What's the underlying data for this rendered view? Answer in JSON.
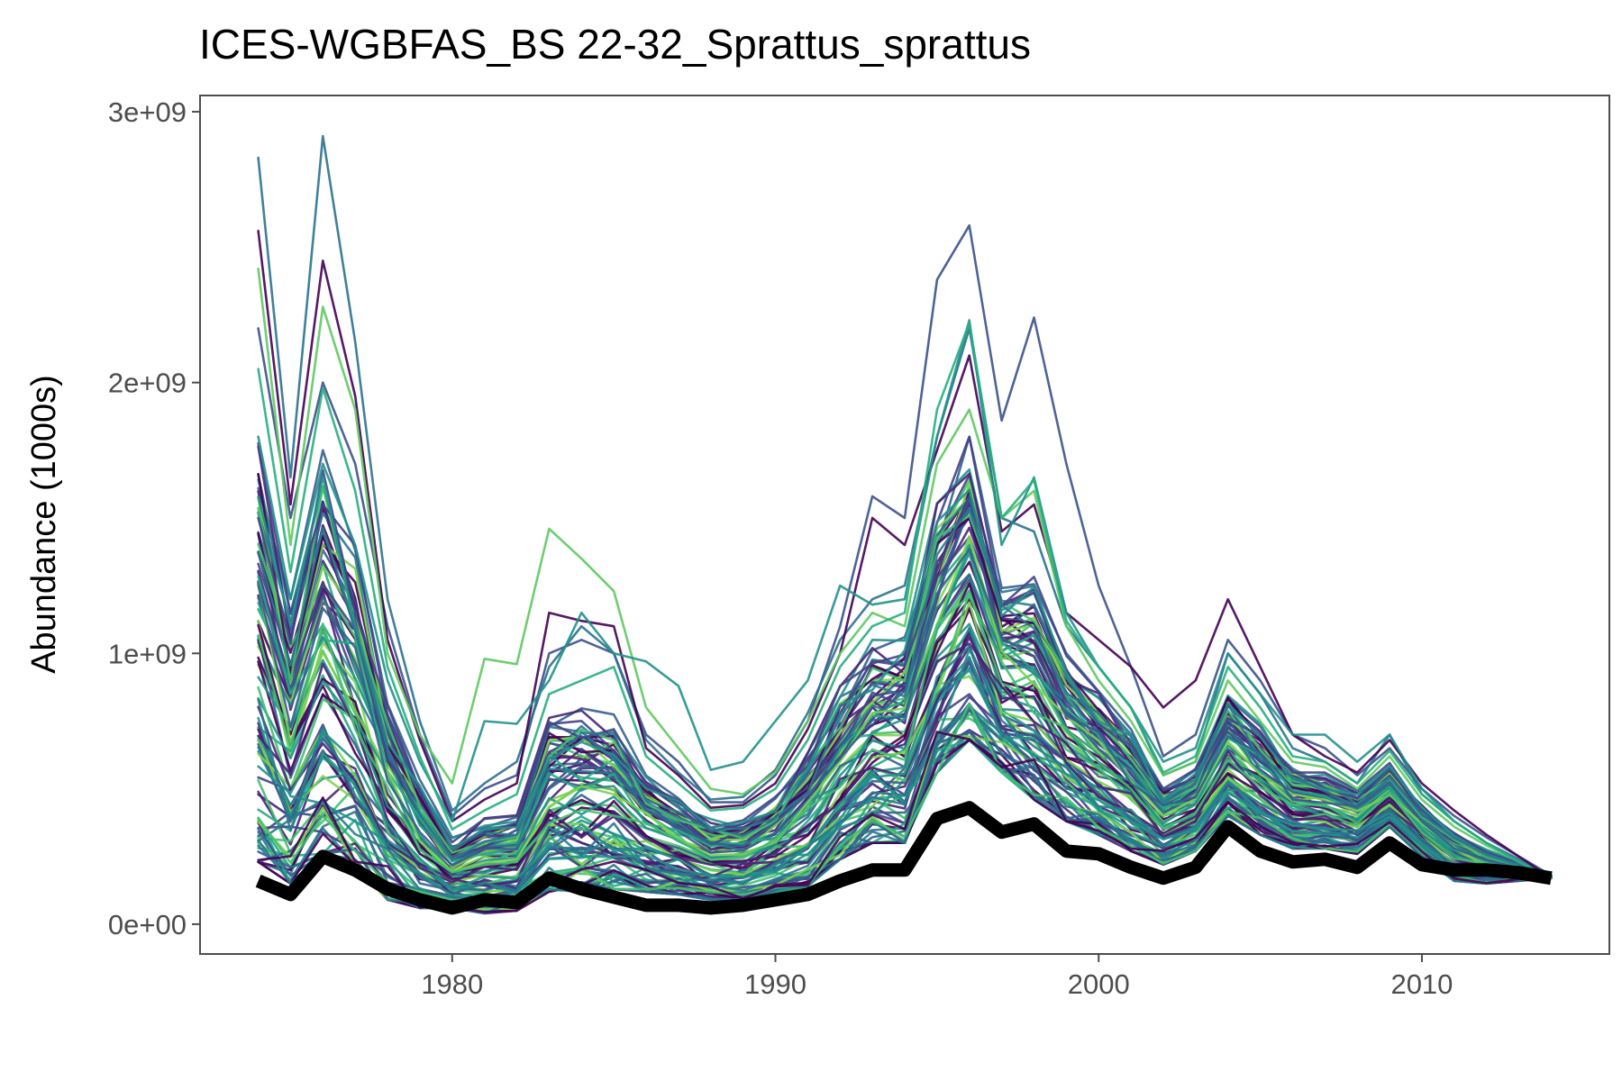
{
  "chart_data": {
    "type": "line",
    "title": "ICES-WGBFAS_BS 22-32_Sprattus_sprattus",
    "xlabel": "",
    "ylabel": "Abundance (1000s)",
    "xlim": [
      1972.2,
      2015.8
    ],
    "ylim": [
      -110000000,
      3060000000
    ],
    "x_ticks": [
      1980,
      1990,
      2000,
      2010
    ],
    "x_tick_labels": [
      "1980",
      "1990",
      "2000",
      "2010"
    ],
    "y_ticks": [
      0,
      1000000000,
      2000000000,
      3000000000
    ],
    "y_tick_labels": [
      "0e+00",
      "1e+09",
      "2e+09",
      "3e+09"
    ],
    "grid": false,
    "legend": "none",
    "x": [
      1974,
      1975,
      1976,
      1977,
      1978,
      1979,
      1980,
      1981,
      1982,
      1983,
      1984,
      1985,
      1986,
      1987,
      1988,
      1989,
      1990,
      1991,
      1992,
      1993,
      1994,
      1995,
      1996,
      1997,
      1998,
      1999,
      2000,
      2001,
      2002,
      2003,
      2004,
      2005,
      2006,
      2007,
      2008,
      2009,
      2010,
      2011,
      2012,
      2013,
      2014
    ],
    "reference_series": {
      "color": "#000000",
      "values": [
        160000000,
        110000000,
        250000000,
        200000000,
        130000000,
        90000000,
        60000000,
        90000000,
        80000000,
        170000000,
        130000000,
        100000000,
        70000000,
        70000000,
        60000000,
        70000000,
        90000000,
        110000000,
        160000000,
        200000000,
        200000000,
        390000000,
        430000000,
        340000000,
        370000000,
        270000000,
        260000000,
        210000000,
        170000000,
        210000000,
        360000000,
        270000000,
        230000000,
        240000000,
        210000000,
        300000000,
        220000000,
        200000000,
        200000000,
        190000000,
        170000000
      ]
    },
    "highlighted_series": [
      {
        "color": "#3b528b",
        "values": [
          2200000000,
          1500000000,
          2000000000,
          1700000000,
          1100000000,
          700000000,
          400000000,
          500000000,
          550000000,
          1000000000,
          1050000000,
          1000000000,
          700000000,
          600000000,
          450000000,
          450000000,
          550000000,
          750000000,
          1100000000,
          1580000000,
          1500000000,
          2380000000,
          2580000000,
          1860000000,
          2240000000,
          1700000000,
          1250000000,
          950000000,
          620000000,
          700000000,
          1050000000,
          900000000,
          700000000,
          650000000,
          550000000,
          650000000,
          500000000,
          400000000,
          320000000,
          250000000,
          180000000
        ]
      },
      {
        "color": "#2c728e",
        "values": [
          2830000000,
          1650000000,
          2910000000,
          2150000000,
          1200000000,
          750000000,
          420000000,
          520000000,
          600000000,
          950000000,
          1100000000,
          1000000000,
          680000000,
          560000000,
          460000000,
          470000000,
          570000000,
          780000000,
          1050000000,
          1200000000,
          1250000000,
          1800000000,
          2200000000,
          1500000000,
          1450000000,
          1100000000,
          950000000,
          800000000,
          550000000,
          600000000,
          1000000000,
          850000000,
          650000000,
          600000000,
          520000000,
          700000000,
          480000000,
          380000000,
          300000000,
          240000000,
          170000000
        ]
      },
      {
        "color": "#440154",
        "values": [
          2560000000,
          1550000000,
          2450000000,
          1950000000,
          1050000000,
          680000000,
          380000000,
          460000000,
          520000000,
          1150000000,
          1120000000,
          1100000000,
          650000000,
          550000000,
          430000000,
          440000000,
          520000000,
          720000000,
          1000000000,
          1500000000,
          1400000000,
          1750000000,
          2100000000,
          1450000000,
          1550000000,
          1150000000,
          1050000000,
          950000000,
          800000000,
          900000000,
          1200000000,
          950000000,
          700000000,
          620000000,
          560000000,
          680000000,
          520000000,
          420000000,
          330000000,
          250000000,
          170000000
        ]
      },
      {
        "color": "#5ec962",
        "values": [
          2420000000,
          1400000000,
          2280000000,
          1900000000,
          1000000000,
          700000000,
          520000000,
          980000000,
          960000000,
          1460000000,
          1350000000,
          1230000000,
          800000000,
          650000000,
          500000000,
          480000000,
          560000000,
          750000000,
          1000000000,
          1150000000,
          1100000000,
          1700000000,
          1900000000,
          1500000000,
          1600000000,
          1100000000,
          900000000,
          750000000,
          550000000,
          600000000,
          900000000,
          750000000,
          600000000,
          580000000,
          500000000,
          620000000,
          460000000,
          360000000,
          290000000,
          230000000,
          170000000
        ]
      },
      {
        "color": "#21918c",
        "values": [
          1800000000,
          1200000000,
          1700000000,
          1400000000,
          900000000,
          600000000,
          380000000,
          750000000,
          740000000,
          900000000,
          1150000000,
          1000000000,
          970000000,
          880000000,
          570000000,
          600000000,
          750000000,
          900000000,
          1250000000,
          1180000000,
          1200000000,
          1800000000,
          2230000000,
          1400000000,
          1650000000,
          1150000000,
          950000000,
          800000000,
          600000000,
          650000000,
          1000000000,
          850000000,
          700000000,
          700000000,
          600000000,
          700000000,
          500000000,
          380000000,
          300000000,
          230000000,
          170000000
        ]
      },
      {
        "color": "#28ae80",
        "values": [
          2050000000,
          1300000000,
          1980000000,
          1600000000,
          950000000,
          620000000,
          350000000,
          420000000,
          480000000,
          850000000,
          900000000,
          950000000,
          620000000,
          520000000,
          420000000,
          430000000,
          500000000,
          680000000,
          950000000,
          1100000000,
          1150000000,
          1900000000,
          2220000000,
          1500000000,
          1640000000,
          1120000000,
          950000000,
          800000000,
          560000000,
          620000000,
          950000000,
          800000000,
          620000000,
          600000000,
          520000000,
          640000000,
          480000000,
          380000000,
          300000000,
          230000000,
          170000000
        ]
      }
    ],
    "ensemble": {
      "count": 90,
      "palette": [
        "#440154",
        "#482475",
        "#414487",
        "#355f8d",
        "#2a788e",
        "#21918c",
        "#22a884",
        "#44bf70",
        "#7ad151"
      ],
      "low": [
        230000000,
        150000000,
        260000000,
        220000000,
        90000000,
        60000000,
        60000000,
        40000000,
        50000000,
        120000000,
        110000000,
        130000000,
        120000000,
        110000000,
        90000000,
        90000000,
        120000000,
        140000000,
        240000000,
        300000000,
        300000000,
        560000000,
        680000000,
        560000000,
        460000000,
        380000000,
        330000000,
        270000000,
        220000000,
        270000000,
        400000000,
        330000000,
        280000000,
        280000000,
        260000000,
        360000000,
        250000000,
        160000000,
        150000000,
        160000000,
        170000000
      ],
      "high": [
        1800000000,
        1200000000,
        1750000000,
        1400000000,
        850000000,
        550000000,
        320000000,
        400000000,
        420000000,
        780000000,
        800000000,
        780000000,
        560000000,
        480000000,
        390000000,
        400000000,
        470000000,
        640000000,
        880000000,
        1050000000,
        1060000000,
        1560000000,
        1800000000,
        1260000000,
        1300000000,
        1000000000,
        860000000,
        720000000,
        520000000,
        580000000,
        880000000,
        740000000,
        590000000,
        560000000,
        500000000,
        600000000,
        450000000,
        350000000,
        280000000,
        230000000,
        180000000
      ],
      "weights": [
        1,
        0.9,
        1,
        1,
        0.9,
        0.9,
        0.8,
        0.8,
        0.8,
        1,
        1,
        1,
        0.9,
        0.9,
        0.8,
        0.8,
        0.8,
        0.9,
        1,
        1,
        1,
        1,
        1,
        1,
        1,
        0.9,
        0.9,
        0.9,
        0.8,
        0.8,
        1,
        0.9,
        0.8,
        0.8,
        0.8,
        0.9,
        0.8,
        0.8,
        0.8,
        0.8,
        0.7
      ]
    }
  }
}
